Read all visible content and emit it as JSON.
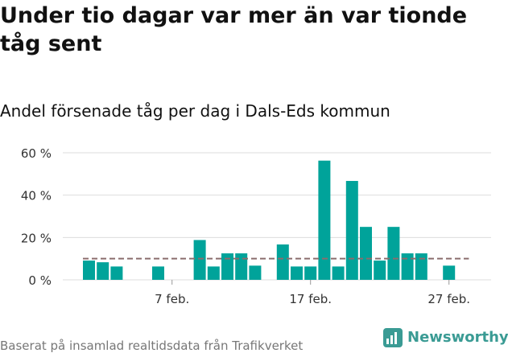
{
  "title": "Under tio dagar var mer än var tionde tåg sent",
  "subtitle": "Andel försenade tåg per dag i Dals-Eds kommun",
  "source": "Baserat på insamlad realtidsdata från Trafikverket",
  "brand": {
    "name": "Newsworthy",
    "icon": "newsworthy-logo-icon"
  },
  "colors": {
    "bar": "#00a39a",
    "reference_line": "#8a6d6d",
    "grid": "#dddddd"
  },
  "chart_data": {
    "type": "bar",
    "categories": [
      "2/1",
      "2/2",
      "2/3",
      "2/4",
      "2/5",
      "2/6",
      "2/7",
      "2/8",
      "2/9",
      "2/10",
      "2/11",
      "2/12",
      "2/13",
      "2/14",
      "2/15",
      "2/16",
      "2/17",
      "2/18",
      "2/19",
      "2/20",
      "2/21",
      "2/22",
      "2/23",
      "2/24",
      "2/25",
      "2/26",
      "2/27",
      "2/28"
    ],
    "values": [
      9.1,
      8.3,
      6.3,
      0,
      0,
      6.3,
      0,
      0,
      18.8,
      6.3,
      12.5,
      12.5,
      6.7,
      0,
      16.7,
      6.3,
      6.3,
      56.3,
      6.3,
      46.7,
      25,
      9.1,
      25,
      12.5,
      12.5,
      0,
      6.7,
      0
    ],
    "reference_line": 10,
    "yticks": [
      "0 %",
      "20 %",
      "40 %",
      "60 %"
    ],
    "ytick_values": [
      0,
      20,
      40,
      60
    ],
    "xticks": [
      "7 feb.",
      "17 feb.",
      "27 feb."
    ],
    "xtick_categories": [
      "2/7",
      "2/17",
      "2/27"
    ],
    "ylim": [
      0,
      60
    ],
    "grid": true,
    "xlabel": "",
    "ylabel": ""
  }
}
